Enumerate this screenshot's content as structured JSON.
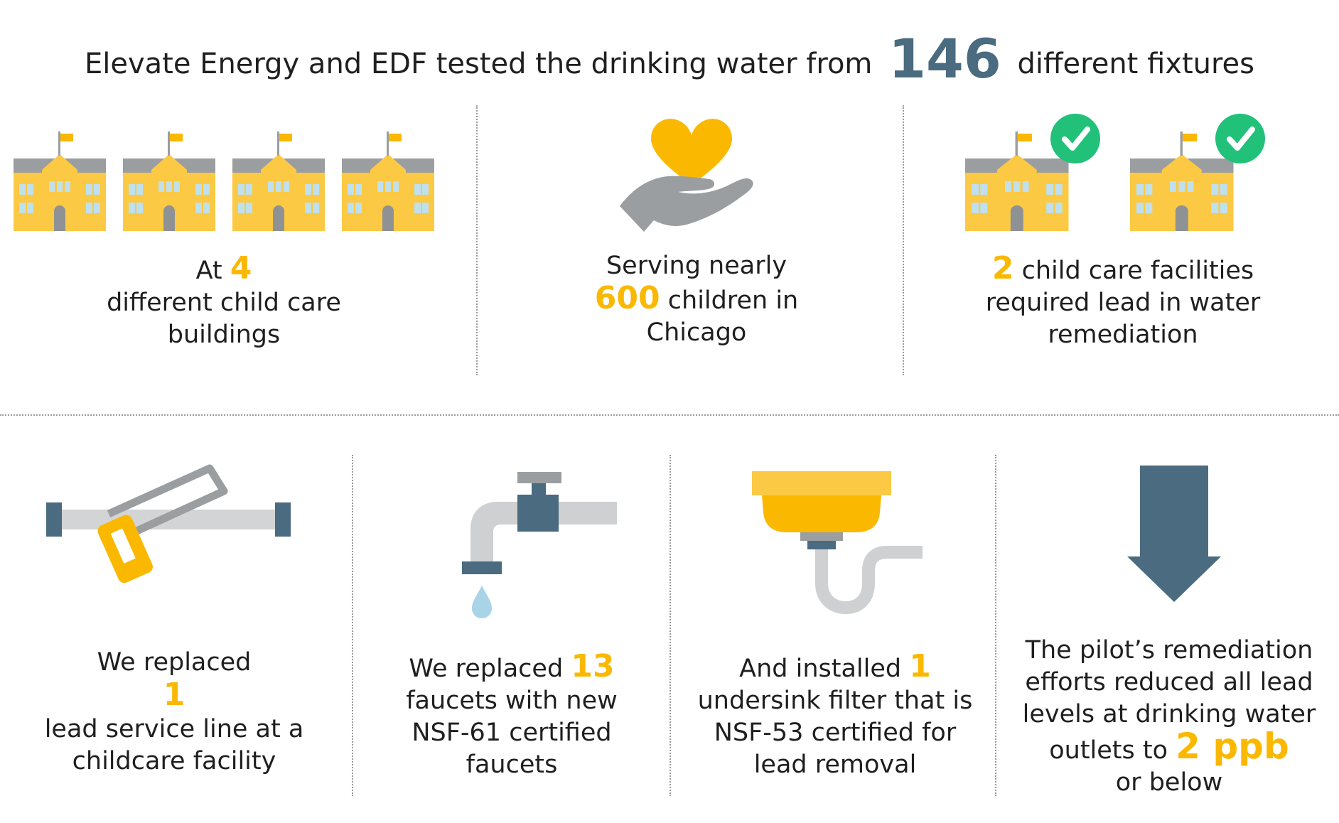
{
  "headline": {
    "prefix": "Elevate Energy and EDF tested the drinking water from",
    "number": "146",
    "suffix": "different fixtures"
  },
  "top": {
    "buildings": {
      "pre": "At",
      "number": "4",
      "line2": "different child care",
      "line3": "buildings"
    },
    "children": {
      "line1": "Serving nearly",
      "number": "600",
      "line2_rest": "children in",
      "line3": "Chicago"
    },
    "facilities": {
      "number": "2",
      "line1_rest": "child care facilities",
      "line2": "required lead in water",
      "line3": "remediation"
    }
  },
  "bottom": {
    "service_line": {
      "line1": "We replaced",
      "number": "1",
      "line3": "lead service line at a",
      "line4": "childcare facility"
    },
    "faucets": {
      "line1_pre": "We replaced",
      "number": "13",
      "line2": "faucets with new",
      "line3": "NSF-61 certified",
      "line4": "faucets"
    },
    "filter": {
      "line1_pre": "And installed",
      "number": "1",
      "line2": "undersink filter that is",
      "line3": "NSF-53 certified for",
      "line4": "lead removal"
    },
    "result": {
      "line1": "The pilot’s remediation",
      "line2": "efforts reduced all lead",
      "line3": "levels at drinking water",
      "line4_pre": "outlets to",
      "number": "2 ppb",
      "line5": "or below"
    }
  },
  "colors": {
    "accent_yellow": "#fbb800",
    "slate_blue": "#4a6b80",
    "gray": "#9b9ea0",
    "check_green": "#22c17a"
  },
  "icons": [
    "school-building-icon",
    "heart-in-hand-icon",
    "school-building-checked-icon",
    "pipe-hacksaw-icon",
    "faucet-icon",
    "sink-filter-icon",
    "down-arrow-icon"
  ]
}
